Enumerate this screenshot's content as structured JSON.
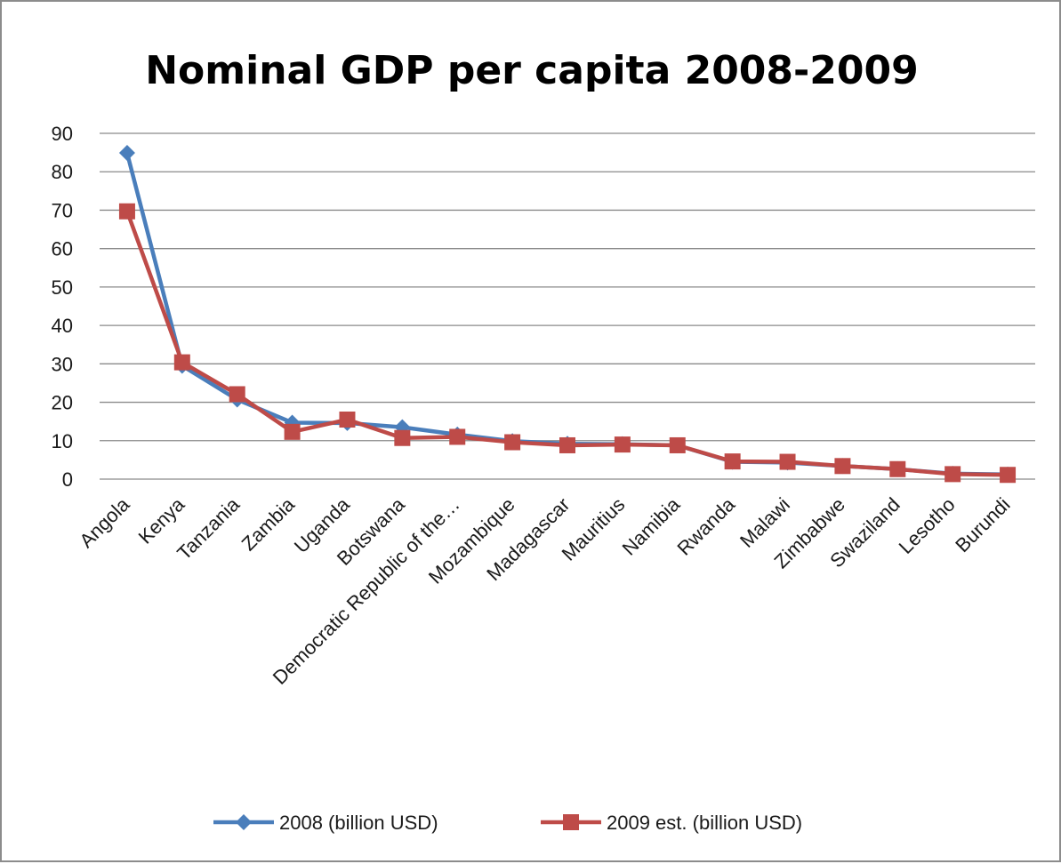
{
  "chart_data": {
    "type": "line",
    "title": "Nominal GDP per capita 2008-2009",
    "xlabel": "",
    "ylabel": "",
    "ylim": [
      0,
      90
    ],
    "yticks": [
      0,
      10,
      20,
      30,
      40,
      50,
      60,
      70,
      80,
      90
    ],
    "grid": true,
    "legend_position": "bottom",
    "categories": [
      "Angola",
      "Kenya",
      "Tanzania",
      "Zambia",
      "Uganda",
      "Botswana",
      "Democratic Republic of the…",
      "Mozambique",
      "Madagascar",
      "Mauritius",
      "Namibia",
      "Rwanda",
      "Malawi",
      "Zimbabwe",
      "Swaziland",
      "Lesotho",
      "Burundi"
    ],
    "series": [
      {
        "name": "2008 (billion USD)",
        "color": "#4a7ebb",
        "marker": "diamond",
        "values": [
          84.9,
          29.5,
          20.7,
          14.7,
          14.6,
          13.5,
          11.6,
          9.9,
          9.2,
          9.1,
          8.8,
          4.5,
          4.3,
          3.4,
          2.6,
          1.4,
          1.2
        ]
      },
      {
        "name": "2009 est. (billion USD)",
        "color": "#be4b48",
        "marker": "square",
        "values": [
          69.7,
          30.4,
          22.1,
          12.3,
          15.5,
          10.7,
          11.0,
          9.6,
          8.8,
          9.0,
          8.8,
          4.6,
          4.5,
          3.4,
          2.6,
          1.3,
          1.1
        ]
      }
    ]
  }
}
